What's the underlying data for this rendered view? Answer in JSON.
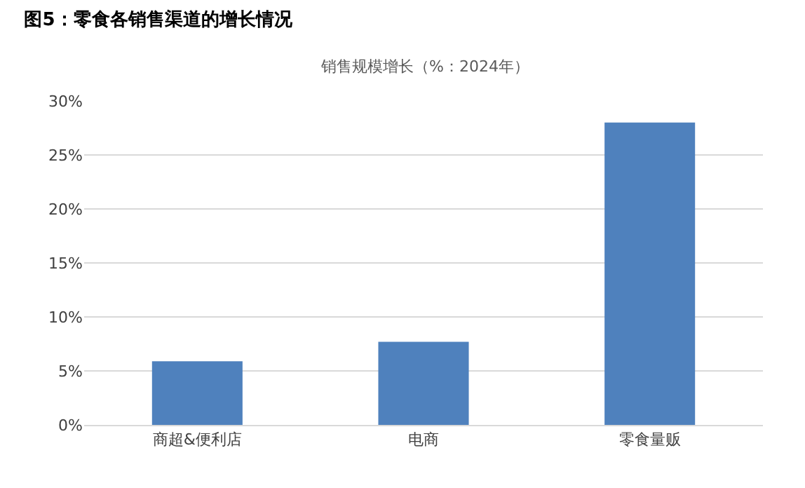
{
  "chart_data": {
    "type": "bar",
    "title": "图5：零食各销售渠道的增长情况",
    "subtitle": "销售规模增长（%：2024年）",
    "categories": [
      "商超&便利店",
      "电商",
      "零食量贩"
    ],
    "values": [
      5.9,
      7.7,
      28.0
    ],
    "color": "#4f81bd",
    "ylim": [
      0,
      30
    ],
    "yticks": [
      {
        "value": 0,
        "label": "0%"
      },
      {
        "value": 5,
        "label": "5%"
      },
      {
        "value": 10,
        "label": "10%"
      },
      {
        "value": 15,
        "label": "15%"
      },
      {
        "value": 20,
        "label": "20%"
      },
      {
        "value": 25,
        "label": "25%"
      },
      {
        "value": 30,
        "label": "30%"
      }
    ],
    "grid": "y",
    "legend": false
  }
}
